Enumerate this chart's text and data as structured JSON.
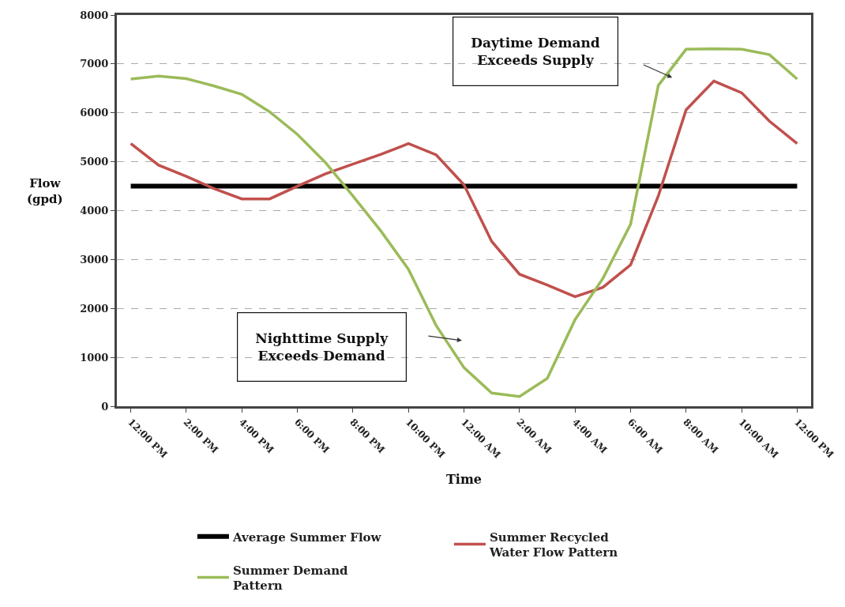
{
  "chart_data": {
    "type": "line",
    "xlabel": "Time",
    "ylabel": "Flow\n(gpd)",
    "categories": [
      "12:00 PM",
      null,
      "2:00 PM",
      null,
      "4:00 PM",
      null,
      "6:00 PM",
      null,
      "8:00 PM",
      null,
      "10:00 PM",
      null,
      "12:00 AM",
      null,
      "2:00 AM",
      null,
      "4:00 AM",
      null,
      "6:00 AM",
      null,
      "8:00 AM",
      null,
      "10:00 AM",
      null,
      "12:00 PM"
    ],
    "series": [
      {
        "name": "Average Summer Flow",
        "color": "#000000",
        "values": [
          4500,
          4500,
          4500,
          4500,
          4500,
          4500,
          4500,
          4500,
          4500,
          4500,
          4500,
          4500,
          4500,
          4500,
          4500,
          4500,
          4500,
          4500,
          4500,
          4500,
          4500,
          4500,
          4500,
          4500,
          4500
        ]
      },
      {
        "name": "Summer Recycled\nWater Flow Pattern",
        "color": "#c0504d",
        "values": [
          5370,
          4930,
          4700,
          4450,
          4240,
          4240,
          4500,
          4750,
          4950,
          5150,
          5370,
          5140,
          4530,
          3370,
          2700,
          2480,
          2240,
          2430,
          2890,
          4300,
          6060,
          6650,
          6410,
          5830,
          5370
        ]
      },
      {
        "name": "Summer Demand\nPattern",
        "color": "#9bbb59",
        "values": [
          6690,
          6750,
          6700,
          6550,
          6380,
          6020,
          5560,
          4990,
          4300,
          3590,
          2800,
          1650,
          790,
          270,
          200,
          570,
          1770,
          2610,
          3720,
          6560,
          7300,
          7310,
          7300,
          7190,
          6690
        ]
      }
    ],
    "ylim": [
      0,
      8000
    ],
    "yticks": [
      0,
      1000,
      2000,
      3000,
      4000,
      5000,
      6000,
      7000,
      8000
    ],
    "grid": "y",
    "legend": "bottom",
    "marker": "none",
    "line_style": "solid",
    "annotations": [
      "Daytime Demand\nExceeds Supply",
      "Nighttime Supply\nExceeds Demand"
    ]
  }
}
